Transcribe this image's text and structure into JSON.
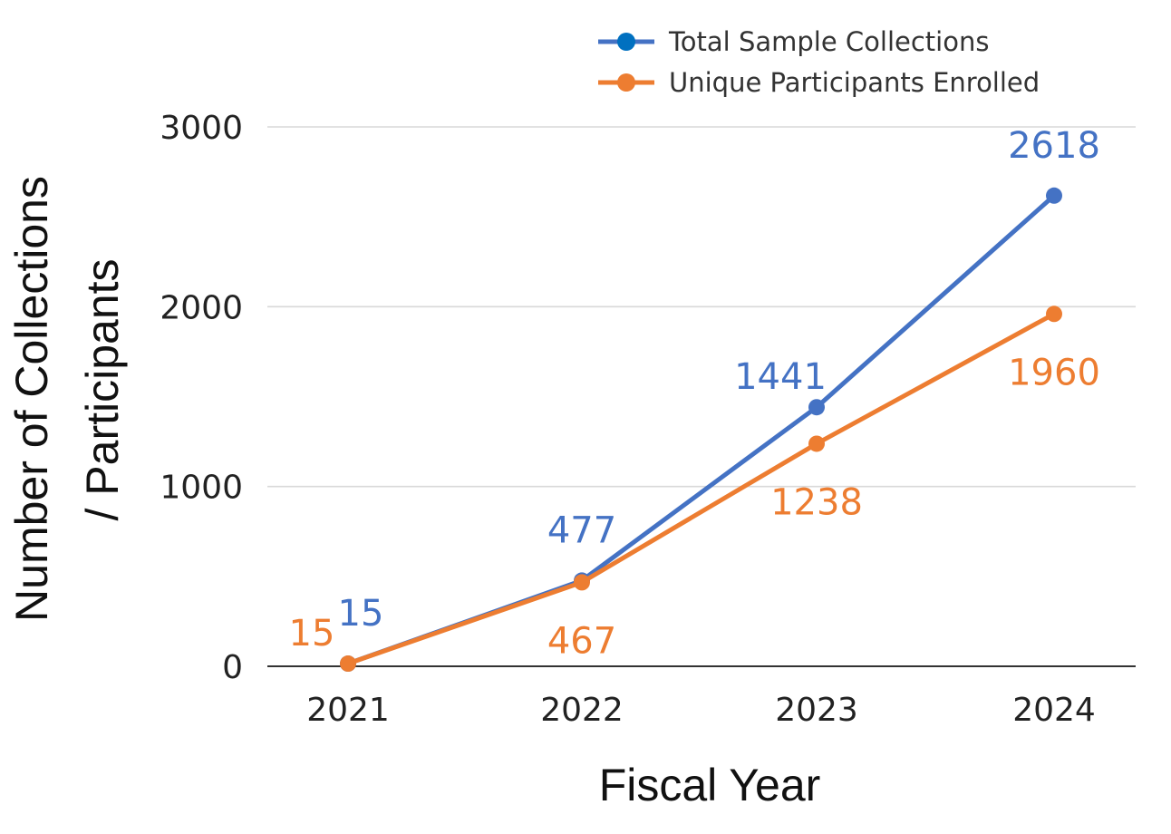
{
  "chart_data": {
    "type": "line",
    "title": "",
    "xlabel": "Fiscal Year",
    "ylabel_lines": [
      "Number of Collections",
      "/ Participants"
    ],
    "categories": [
      "2021",
      "2022",
      "2023",
      "2024"
    ],
    "ylim": [
      0,
      3000
    ],
    "yticks": [
      0,
      1000,
      2000,
      3000
    ],
    "ytick_labels": [
      "0",
      "1000",
      "2000",
      "3000"
    ],
    "grid": true,
    "legend_position": "top-right",
    "series": [
      {
        "name": "Total Sample Collections",
        "color": "#4472C4",
        "legend_marker_color": "#0070C0",
        "values": [
          15,
          477,
          1441,
          2618
        ],
        "labels": [
          "15",
          "477",
          "1441",
          "2618"
        ],
        "label_placement": [
          "above-right",
          "above",
          "above-left",
          "above"
        ]
      },
      {
        "name": "Unique Participants Enrolled",
        "color": "#ED7D31",
        "legend_marker_color": "#ED7D31",
        "values": [
          15,
          467,
          1238,
          1960
        ],
        "labels": [
          "15",
          "467",
          "1238",
          "1960"
        ],
        "label_placement": [
          "above-left",
          "below",
          "below",
          "below"
        ]
      }
    ]
  }
}
